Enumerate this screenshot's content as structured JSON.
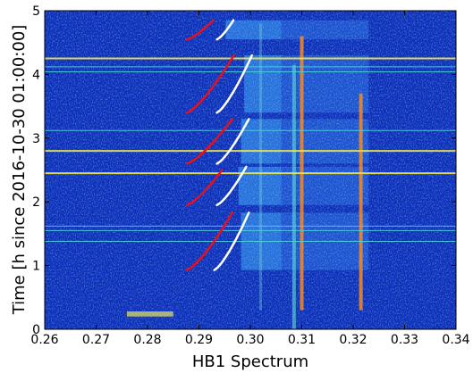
{
  "chart_data": {
    "type": "heatmap",
    "title": "",
    "xlabel": "HB1 Spectrum",
    "ylabel": "Time [h since 2016-10-30 01:00:00]",
    "xlim": [
      0.26,
      0.34
    ],
    "ylim": [
      0,
      5
    ],
    "xticks": [
      "0.26",
      "0.27",
      "0.28",
      "0.29",
      "0.30",
      "0.31",
      "0.32",
      "0.33",
      "0.34"
    ],
    "yticks": [
      "0",
      "1",
      "2",
      "3",
      "4",
      "5"
    ],
    "grid": false,
    "colormap": "jet",
    "colors": {
      "background": "#0d2fb8",
      "red_curve": "#e8101a",
      "white_curve": "#ffffff",
      "band_yellow": "#f2e84a",
      "band_cyan": "#4fd3e0"
    },
    "curve_families": [
      {
        "name": "",
        "color": "red",
        "segments": [
          {
            "t0": 0.93,
            "t1": 1.83,
            "x0": 0.2877,
            "x1": 0.2965
          },
          {
            "t0": 1.95,
            "t1": 2.5,
            "x0": 0.2877,
            "x1": 0.2945
          },
          {
            "t0": 2.6,
            "t1": 3.3,
            "x0": 0.2877,
            "x1": 0.2965
          },
          {
            "t0": 3.4,
            "t1": 4.3,
            "x0": 0.2877,
            "x1": 0.2968
          },
          {
            "t0": 4.55,
            "t1": 4.85,
            "x0": 0.2877,
            "x1": 0.2928
          }
        ]
      },
      {
        "name": "",
        "color": "white",
        "segments": [
          {
            "t0": 0.93,
            "t1": 1.83,
            "x0": 0.293,
            "x1": 0.2997
          },
          {
            "t0": 1.95,
            "t1": 2.55,
            "x0": 0.2935,
            "x1": 0.2992
          },
          {
            "t0": 2.6,
            "t1": 3.3,
            "x0": 0.2935,
            "x1": 0.2997
          },
          {
            "t0": 3.4,
            "t1": 4.3,
            "x0": 0.2935,
            "x1": 0.3003
          },
          {
            "t0": 4.55,
            "t1": 4.85,
            "x0": 0.2935,
            "x1": 0.2967
          }
        ]
      }
    ],
    "horizontal_bands": [
      {
        "t": 4.25,
        "color": "yellow"
      },
      {
        "t": 4.12,
        "color": "cyan"
      },
      {
        "t": 4.04,
        "color": "cyan"
      },
      {
        "t": 3.12,
        "color": "cyan"
      },
      {
        "t": 2.8,
        "color": "yellow"
      },
      {
        "t": 2.45,
        "color": "yellow"
      },
      {
        "t": 1.62,
        "color": "cyan"
      },
      {
        "t": 1.55,
        "color": "cyan"
      },
      {
        "t": 1.38,
        "color": "cyan"
      }
    ],
    "spectral_lines": [
      {
        "x": 0.3085,
        "t0": 0.0,
        "t1": 4.15,
        "strength": "medium"
      },
      {
        "x": 0.31,
        "t0": 0.3,
        "t1": 4.6,
        "strength": "strong"
      },
      {
        "x": 0.3215,
        "t0": 0.3,
        "t1": 3.7,
        "strength": "strong"
      },
      {
        "x": 0.302,
        "t0": 0.3,
        "t1": 4.8,
        "strength": "weak"
      }
    ]
  }
}
